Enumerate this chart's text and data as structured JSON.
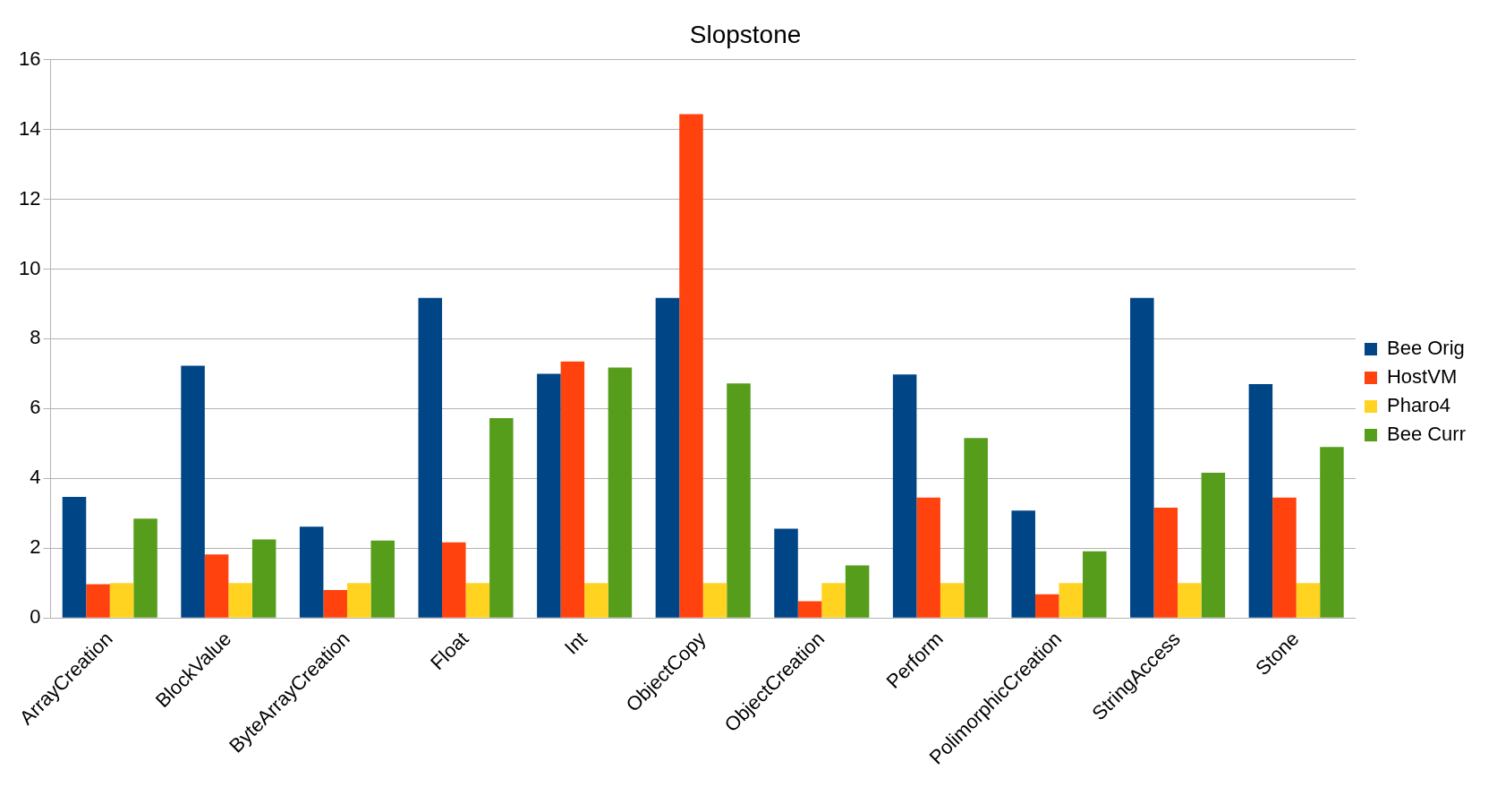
{
  "chart_data": {
    "type": "bar",
    "title": "Slopstone",
    "categories": [
      "ArrayCreation",
      "BlockValue",
      "ByteArrayCreation",
      "Float",
      "Int",
      "ObjectCopy",
      "ObjectCreation",
      "Perform",
      "PolimorphicCreation",
      "StringAccess",
      "Stone"
    ],
    "series": [
      {
        "name": "Bee Orig",
        "color": "#004586",
        "values": [
          3.47,
          7.23,
          2.62,
          9.17,
          7.0,
          9.17,
          2.56,
          6.98,
          3.08,
          9.17,
          6.7
        ]
      },
      {
        "name": "HostVM",
        "color": "#ff420e",
        "values": [
          0.97,
          1.82,
          0.8,
          2.17,
          7.35,
          14.44,
          0.48,
          3.45,
          0.68,
          3.16,
          3.45
        ]
      },
      {
        "name": "Pharo4",
        "color": "#ffd320",
        "values": [
          1,
          1,
          1,
          1,
          1,
          1,
          1,
          1,
          1,
          1,
          1
        ]
      },
      {
        "name": "Bee Curr",
        "color": "#579d1c",
        "values": [
          2.85,
          2.25,
          2.22,
          5.73,
          7.18,
          6.72,
          1.51,
          5.16,
          1.91,
          4.16,
          4.9
        ]
      }
    ],
    "ylim": [
      0,
      16
    ],
    "yticks": [
      0,
      2,
      4,
      6,
      8,
      10,
      12,
      14,
      16
    ],
    "grid": "y",
    "legend": "right"
  }
}
